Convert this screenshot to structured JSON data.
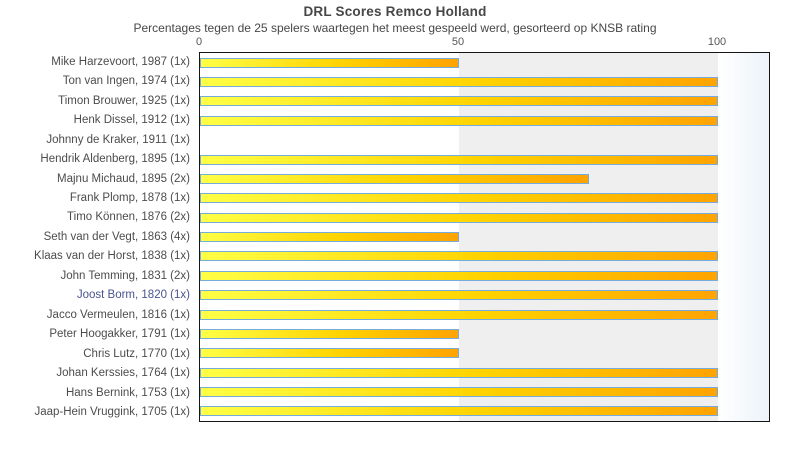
{
  "chart_data": {
    "type": "bar",
    "orientation": "horizontal",
    "title": "DRL Scores Remco Holland",
    "subtitle": "Percentages tegen de 25 spelers waartegen het meest gespeeld werd, gesorteerd op KNSB rating",
    "xlabel": "",
    "ylabel": "",
    "xlim": [
      0,
      110
    ],
    "xticks": [
      0,
      50,
      100
    ],
    "grid": "banded-background",
    "legend": "none",
    "categories": [
      "Mike Harzevoort, 1987 (1x)",
      "Ton van Ingen, 1974 (1x)",
      "Timon Brouwer, 1925 (1x)",
      "Henk Dissel, 1912 (1x)",
      "Johnny de Kraker, 1911 (1x)",
      "Hendrik Aldenberg, 1895 (1x)",
      "Majnu Michaud, 1895 (2x)",
      "Frank Plomp, 1878 (1x)",
      "Timo Können, 1876 (2x)",
      "Seth van der Vegt, 1863 (4x)",
      "Klaas van der Horst, 1838 (1x)",
      "John Temming, 1831 (2x)",
      "Joost Borm, 1820 (1x)",
      "Jacco Vermeulen, 1816 (1x)",
      "Peter Hoogakker, 1791 (1x)",
      "Chris Lutz, 1770 (1x)",
      "Johan Kerssies, 1764 (1x)",
      "Hans Bernink, 1753 (1x)",
      "Jaap-Hein Vruggink, 1705 (1x)"
    ],
    "values": [
      50,
      100,
      100,
      100,
      0,
      100,
      75,
      100,
      100,
      50,
      100,
      100,
      100,
      100,
      50,
      50,
      100,
      100,
      100
    ],
    "highlight_index": 12,
    "colors": {
      "bar_gradient_start": "#ffff45",
      "bar_gradient_mid": "#ffd200",
      "bar_gradient_end": "#ffa300",
      "bar_border": "#76acdc",
      "band_white": "#ffffff",
      "band_gray": "#efefef",
      "band_right_fade": "#ecf3fa",
      "label_default": "#4c4c4c",
      "label_highlight": "#4a5490",
      "tick_label": "#565656",
      "frame": "#151515",
      "title_text": "#474747"
    }
  }
}
